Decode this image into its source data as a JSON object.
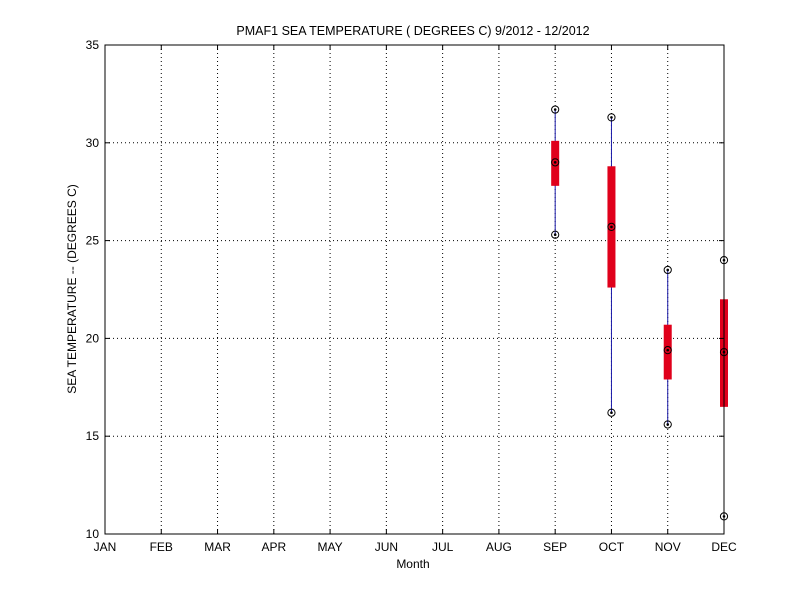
{
  "chart_data": {
    "type": "box",
    "title": "PMAF1  SEA TEMPERATURE ( DEGREES C) 9/2012 - 12/2012",
    "xlabel": "Month",
    "ylabel": "SEA TEMPERATURE -- (DEGREES C)",
    "categories": [
      "JAN",
      "FEB",
      "MAR",
      "APR",
      "MAY",
      "JUN",
      "JUL",
      "AUG",
      "SEP",
      "OCT",
      "NOV",
      "DEC"
    ],
    "ylim": [
      10,
      35
    ],
    "yticks": [
      "10",
      "15",
      "20",
      "25",
      "30",
      "35"
    ],
    "grid": true,
    "boxes": [
      {
        "category": "SEP",
        "min": 25.3,
        "q1": 27.8,
        "median": 29.0,
        "q3": 30.1,
        "max": 31.7
      },
      {
        "category": "OCT",
        "min": 16.2,
        "q1": 22.6,
        "median": 25.7,
        "q3": 28.8,
        "max": 31.3
      },
      {
        "category": "NOV",
        "min": 15.6,
        "q1": 17.9,
        "median": 19.4,
        "q3": 20.7,
        "max": 23.5
      },
      {
        "category": "DEC",
        "min": 10.9,
        "q1": 16.5,
        "median": 19.3,
        "q3": 22.0,
        "max": 24.0
      }
    ],
    "colors": {
      "box": "#e0001b",
      "whisker": "#1a1aa8",
      "marker": "#000000",
      "axis": "#000000",
      "grid": "#000000"
    }
  }
}
